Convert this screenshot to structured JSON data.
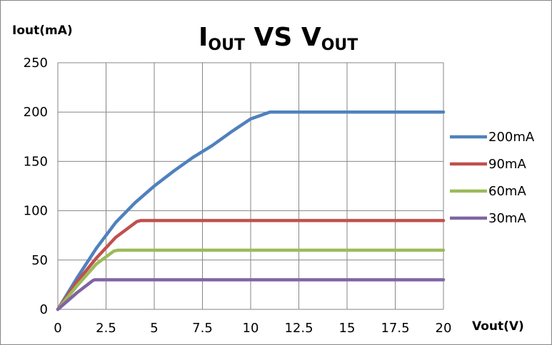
{
  "chart_data": {
    "type": "line",
    "title": {
      "main_1": "I",
      "sub_1": "OUT",
      "mid": " VS ",
      "main_2": "V",
      "sub_2": "OUT"
    },
    "xlabel": "Vout(V)",
    "ylabel": "Iout(mA)",
    "xlim": [
      0,
      20
    ],
    "ylim": [
      0,
      250
    ],
    "xticks": [
      "0",
      "2.5",
      "5",
      "7.5",
      "10",
      "12.5",
      "15",
      "17.5",
      "20"
    ],
    "yticks": [
      "0",
      "50",
      "100",
      "150",
      "200",
      "250"
    ],
    "grid": true,
    "legend_position": "right",
    "series": [
      {
        "name": "200mA",
        "color": "#4F81BD",
        "x": [
          0,
          1,
          2,
          3,
          4,
          5,
          6,
          7,
          8,
          9,
          10,
          11,
          12,
          14,
          16,
          18,
          20
        ],
        "y": [
          0,
          32,
          62,
          88,
          108,
          125,
          140,
          154,
          166,
          180,
          193,
          200,
          200,
          200,
          200,
          200,
          200
        ]
      },
      {
        "name": "90mA",
        "color": "#C0504D",
        "x": [
          0,
          1,
          2,
          3,
          4.1,
          4.3,
          20
        ],
        "y": [
          0,
          28,
          52,
          73,
          89,
          90,
          90
        ]
      },
      {
        "name": "60mA",
        "color": "#9BBB59",
        "x": [
          0,
          1,
          2,
          2.9,
          3.1,
          20
        ],
        "y": [
          0,
          24,
          46,
          59,
          60,
          60
        ]
      },
      {
        "name": "30mA",
        "color": "#8064A2",
        "x": [
          0,
          1,
          1.8,
          1.9,
          20
        ],
        "y": [
          0,
          17,
          29,
          30,
          30
        ]
      }
    ]
  }
}
